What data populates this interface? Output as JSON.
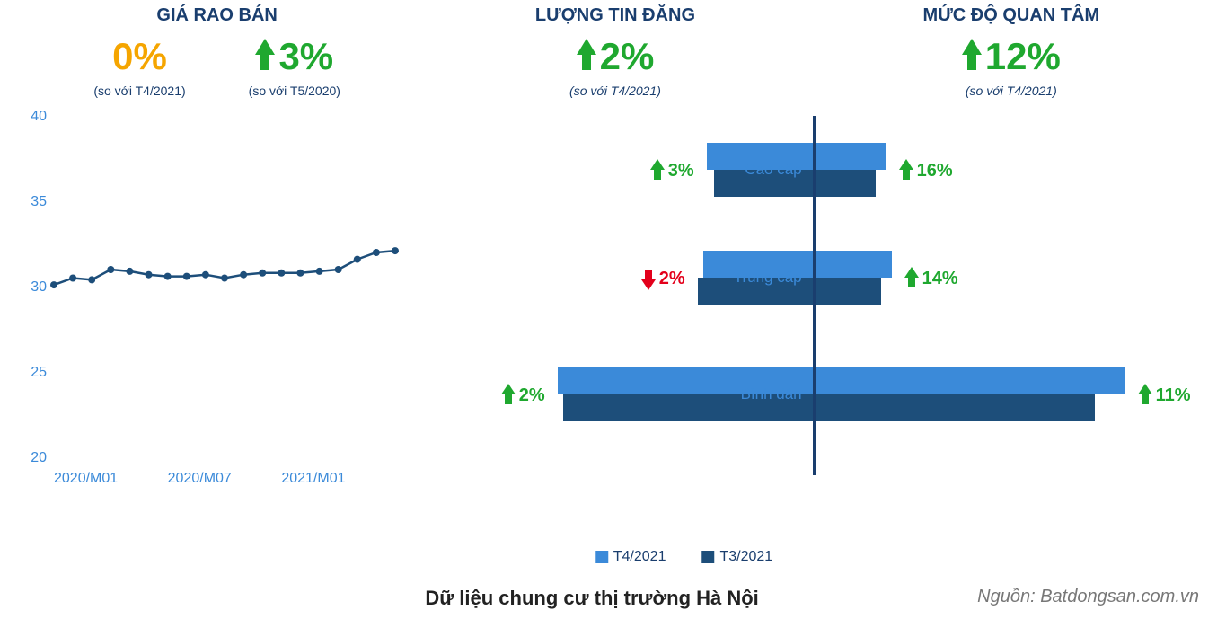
{
  "colors": {
    "heading": "#1a3e6e",
    "green": "#1fa82f",
    "orange": "#f5a500",
    "red": "#e3001b",
    "axis_blue": "#3b8ad9",
    "line_navy": "#1d4e7a",
    "bar_t4": "#3b8ad9",
    "bar_t3": "#1d4e7a",
    "grey": "#777777"
  },
  "left": {
    "title": "GIÁ RAO BÁN",
    "stat1": {
      "value": "0%",
      "color": "#f5a500",
      "sub": "(so với T4/2021)"
    },
    "stat2": {
      "value": "3%",
      "color": "#1fa82f",
      "sub": "(so với T5/2020)",
      "arrow": "up"
    },
    "chart": {
      "type": "line",
      "ylim": [
        20,
        40
      ],
      "yticks": [
        20,
        25,
        30,
        35,
        40
      ],
      "ytick_labels": [
        "20",
        "25",
        "30",
        "35",
        "40"
      ],
      "xticks": [
        "2020/M01",
        "2020/M07",
        "2021/M01"
      ],
      "values": [
        30.1,
        30.5,
        30.4,
        31.0,
        30.9,
        30.7,
        30.6,
        30.6,
        30.7,
        30.5,
        30.7,
        30.8,
        30.8,
        30.8,
        30.9,
        31.0,
        31.6,
        32.0,
        32.1
      ],
      "line_color": "#1d4e7a",
      "marker_color": "#1d4e7a",
      "axis_label_color": "#3b8ad9",
      "axis_fontsize": 16,
      "marker_radius": 4,
      "line_width": 2.5
    }
  },
  "mid": {
    "title": "LƯỢNG TIN ĐĂNG",
    "stat": {
      "value": "2%",
      "color": "#1fa82f",
      "sub": "(so với T4/2021)",
      "sub_italic": true,
      "arrow": "up"
    },
    "rows": [
      {
        "label": "Cao cấp",
        "pct": "3%",
        "dir": "up",
        "t4_w": 118,
        "t3_w": 110
      },
      {
        "label": "Trung cấp",
        "pct": "2%",
        "dir": "down",
        "t4_w": 122,
        "t3_w": 128
      },
      {
        "label": "Bình dân",
        "pct": "2%",
        "dir": "up",
        "t4_w": 284,
        "t3_w": 278
      }
    ],
    "row_tops": [
      30,
      150,
      280
    ]
  },
  "right": {
    "title": "MỨC ĐỘ QUAN TÂM",
    "stat": {
      "value": "12%",
      "color": "#1fa82f",
      "sub": "(so với T4/2021)",
      "sub_italic": true,
      "arrow": "up"
    },
    "rows": [
      {
        "label": "Cao cấp",
        "pct": "16%",
        "dir": "up",
        "t4_w": 78,
        "t3_w": 66
      },
      {
        "label": "Trung cấp",
        "pct": "14%",
        "dir": "up",
        "t4_w": 84,
        "t3_w": 72
      },
      {
        "label": "Bình dân",
        "pct": "11%",
        "dir": "up",
        "t4_w": 344,
        "t3_w": 310
      }
    ],
    "row_tops": [
      30,
      150,
      280
    ]
  },
  "legend": {
    "items": [
      {
        "label": "T4/2021",
        "color": "#3b8ad9"
      },
      {
        "label": "T3/2021",
        "color": "#1d4e7a"
      }
    ]
  },
  "footer": {
    "title": "Dữ liệu chung cư thị trường Hà Nội",
    "source": "Nguồn: Batdongsan.com.vn"
  }
}
